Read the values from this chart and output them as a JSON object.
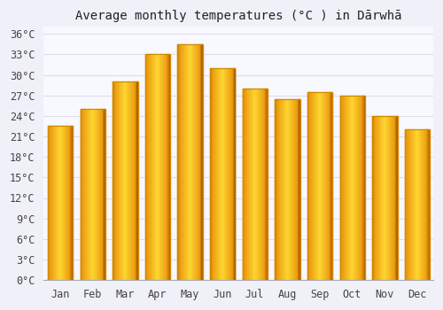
{
  "title": "Average monthly temperatures (°C ) in Dārwhā",
  "months": [
    "Jan",
    "Feb",
    "Mar",
    "Apr",
    "May",
    "Jun",
    "Jul",
    "Aug",
    "Sep",
    "Oct",
    "Nov",
    "Dec"
  ],
  "temperatures": [
    22.5,
    25.0,
    29.0,
    33.0,
    34.5,
    31.0,
    28.0,
    26.5,
    27.5,
    27.0,
    24.0,
    22.0
  ],
  "bar_color_center": "#FFDD44",
  "bar_color_edge": "#E8900A",
  "bar_color_shadow": "#CC7700",
  "background_color": "#F0F0F8",
  "plot_bg_color": "#F8F8FF",
  "grid_color": "#DDDDEE",
  "ylim": [
    0,
    37
  ],
  "yticks": [
    0,
    3,
    6,
    9,
    12,
    15,
    18,
    21,
    24,
    27,
    30,
    33,
    36
  ],
  "title_fontsize": 10,
  "tick_fontsize": 8.5,
  "figsize": [
    5.0,
    3.5
  ],
  "dpi": 100
}
